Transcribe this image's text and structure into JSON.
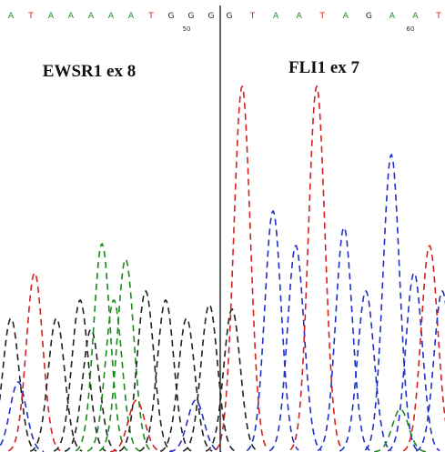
{
  "sequence": {
    "left": [
      "A",
      "T",
      "A",
      "A",
      "A",
      "A",
      "A",
      "T",
      "G",
      "G",
      "G"
    ],
    "right": [
      "G",
      "T",
      "A",
      "A",
      "T",
      "A",
      "G",
      "A",
      "A",
      "T"
    ]
  },
  "positions": [
    "50",
    "60"
  ],
  "labels": {
    "left": "EWSR1 ex 8",
    "right": "FLI1 ex 7"
  }
}
